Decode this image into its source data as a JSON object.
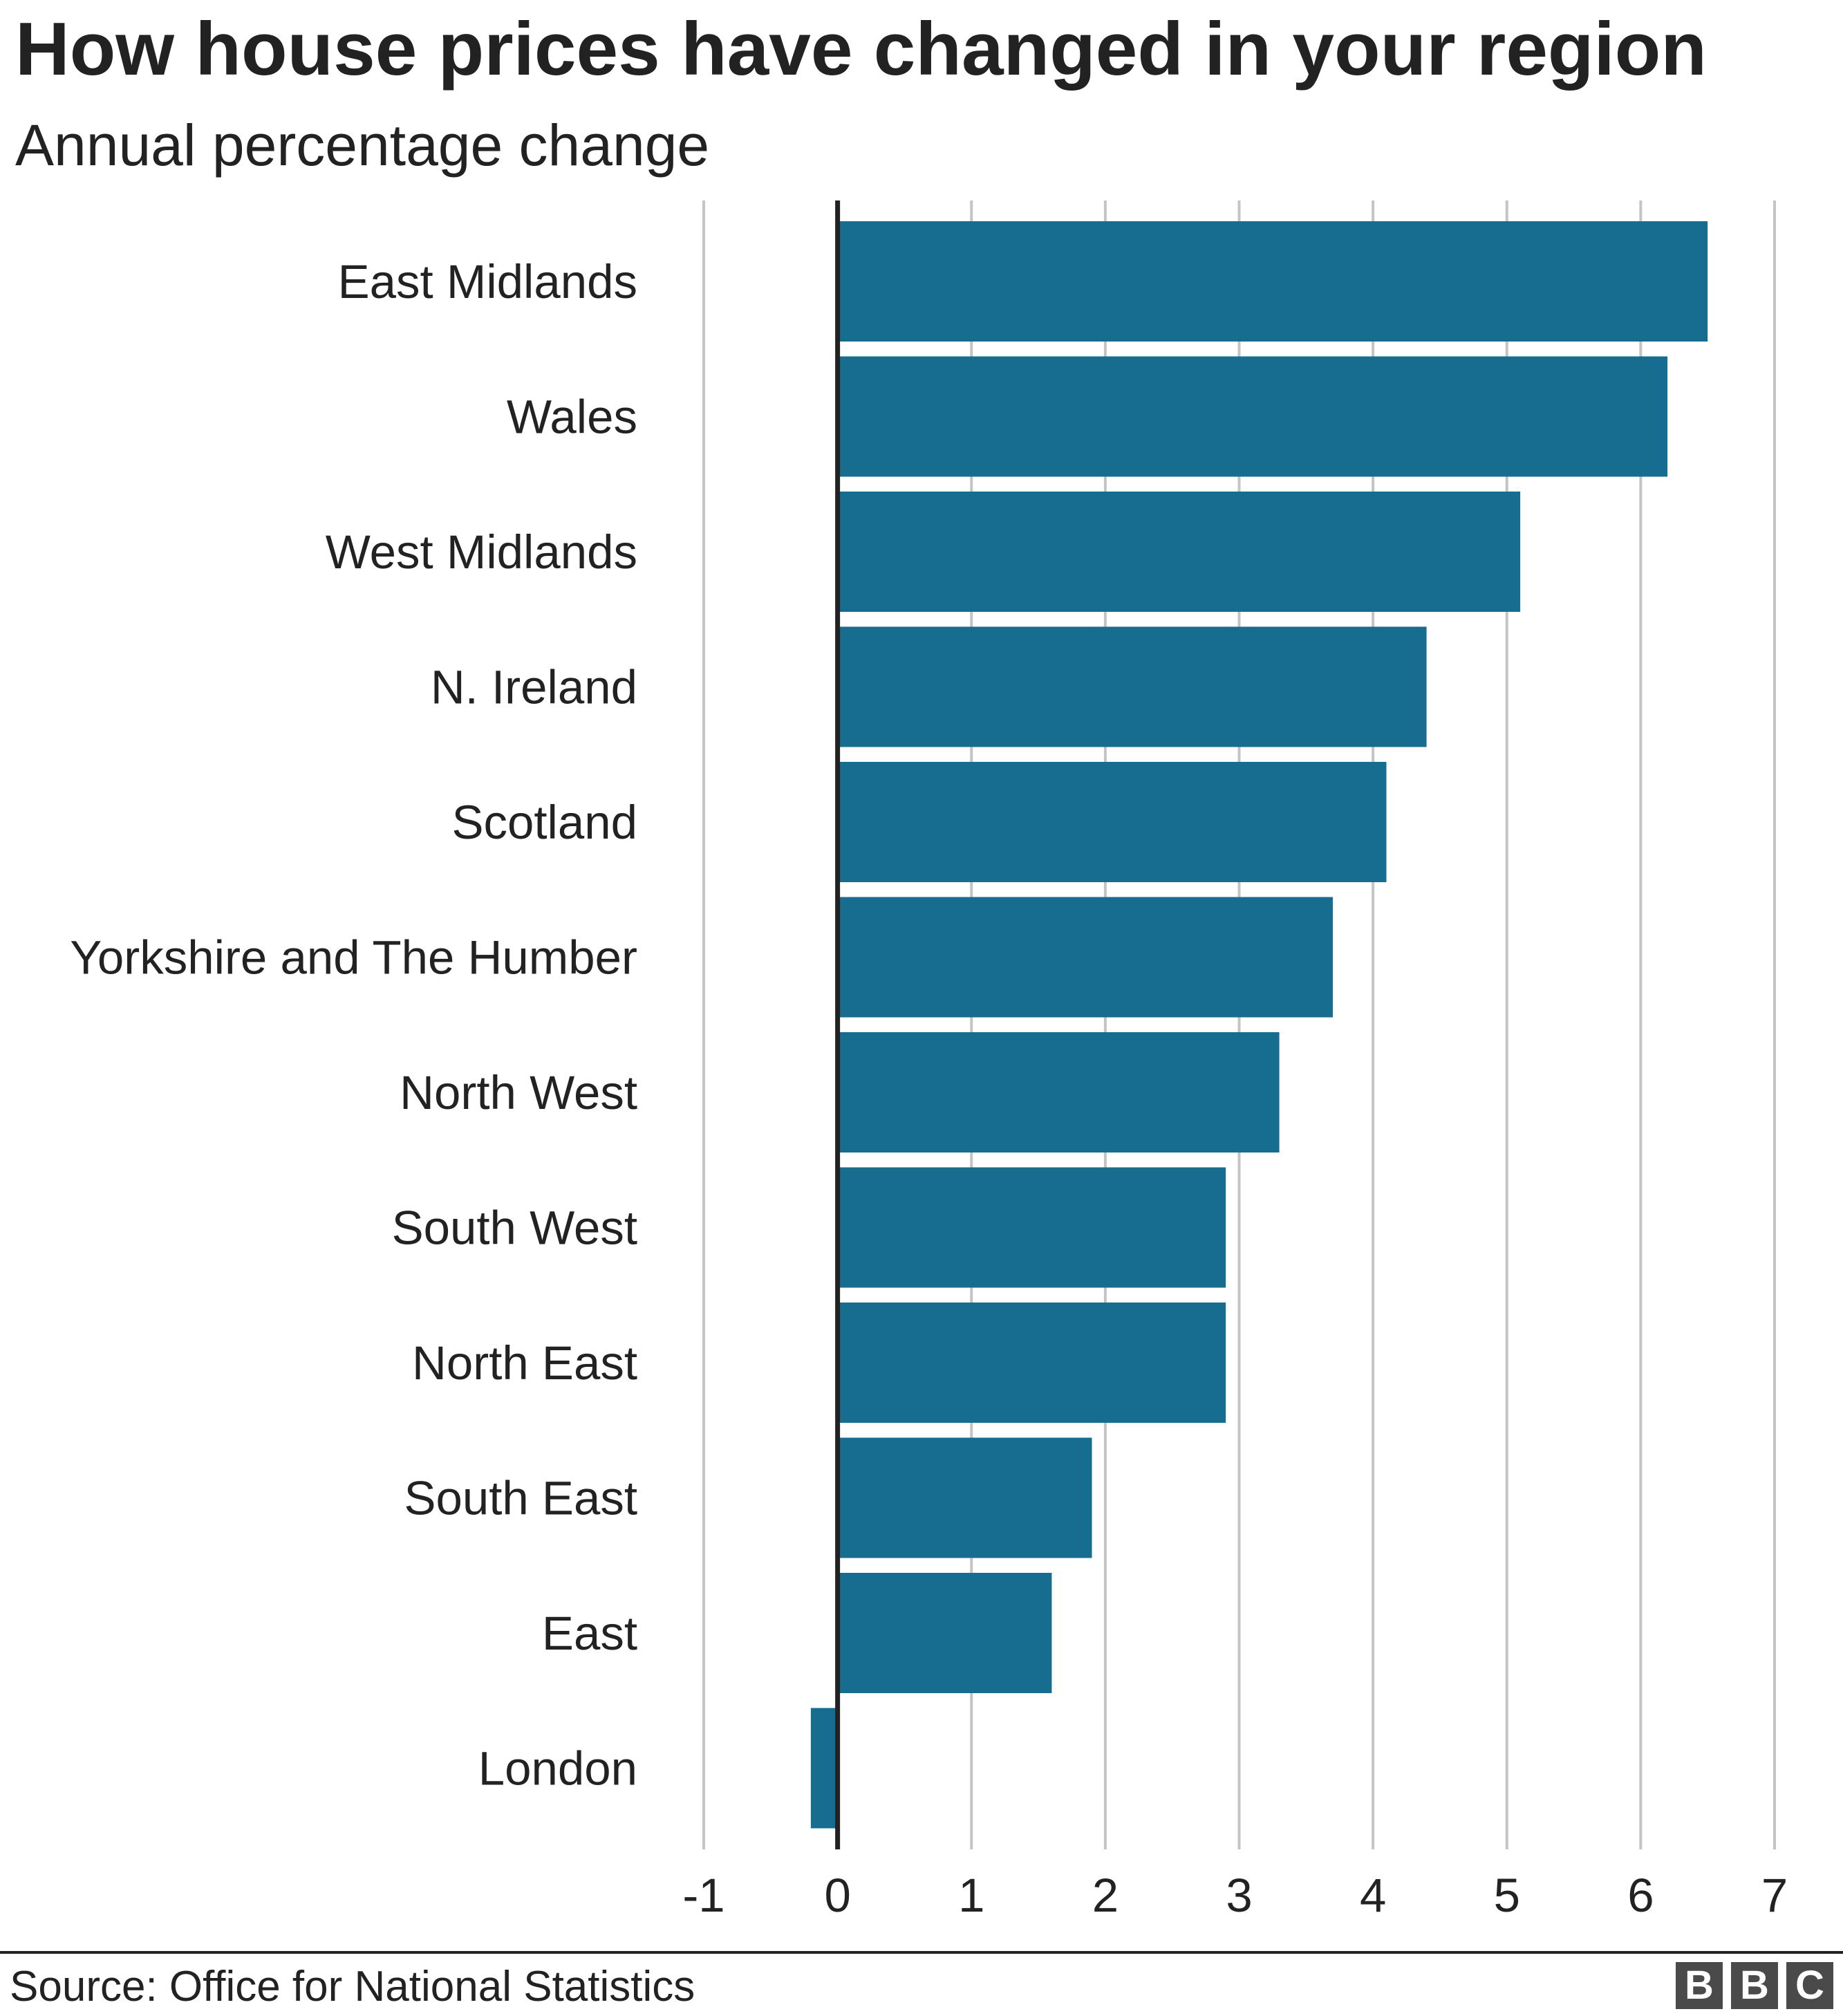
{
  "header": {
    "title": "How house prices have changed in your region",
    "subtitle": "Annual percentage change"
  },
  "footer": {
    "source": "Source: Office for National Statistics",
    "logo": [
      "B",
      "B",
      "C"
    ]
  },
  "colors": {
    "bar": "#176d8f",
    "grid": "#c4c4c4",
    "axis": "#222222",
    "text": "#222222"
  },
  "chart_data": {
    "type": "bar",
    "orientation": "horizontal",
    "title": "How house prices have changed in your region",
    "subtitle": "Annual percentage change",
    "categories": [
      "East Midlands",
      "Wales",
      "West Midlands",
      "N. Ireland",
      "Scotland",
      "Yorkshire and The Humber",
      "North West",
      "South West",
      "North East",
      "South East",
      "East",
      "London"
    ],
    "values": [
      6.5,
      6.2,
      5.1,
      4.4,
      4.1,
      3.7,
      3.3,
      2.9,
      2.9,
      1.9,
      1.6,
      -0.2
    ],
    "xlim": [
      -1,
      7
    ],
    "xticks": [
      -1,
      0,
      1,
      2,
      3,
      4,
      5,
      6,
      7
    ],
    "xtick_labels": [
      "-1",
      "0",
      "1",
      "2",
      "3",
      "4",
      "5",
      "6",
      "7"
    ],
    "grid": true,
    "legend": "none"
  }
}
